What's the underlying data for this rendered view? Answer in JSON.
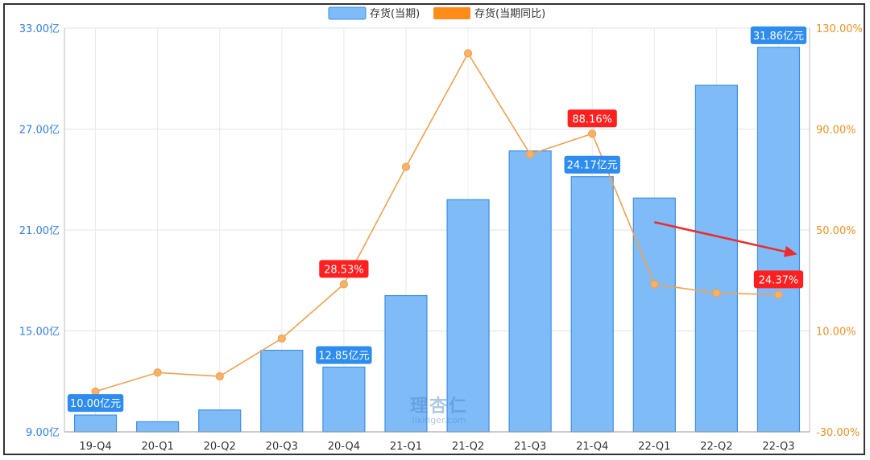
{
  "chart_data": {
    "type": "bar",
    "categories": [
      "19-Q4",
      "20-Q1",
      "20-Q2",
      "20-Q3",
      "20-Q4",
      "21-Q1",
      "21-Q2",
      "21-Q3",
      "21-Q4",
      "22-Q1",
      "22-Q2",
      "22-Q3"
    ],
    "series": [
      {
        "name": "存货(当期)",
        "type": "bar",
        "axis": "left",
        "unit": "亿元",
        "values": [
          10.0,
          9.6,
          10.3,
          13.85,
          12.85,
          17.1,
          22.8,
          25.7,
          24.17,
          22.9,
          29.6,
          31.86
        ]
      },
      {
        "name": "存货(当期同比)",
        "type": "line",
        "axis": "right",
        "unit": "%",
        "values": [
          -14.0,
          -6.5,
          -8.0,
          7.0,
          28.53,
          75.0,
          120.0,
          80.0,
          88.16,
          28.5,
          25.0,
          24.37
        ]
      }
    ],
    "y_left": {
      "ylim": [
        9.0,
        33.0
      ],
      "ticks": [
        "33.00亿",
        "27.00亿",
        "21.00亿",
        "15.00亿",
        "9.00亿"
      ]
    },
    "y_right": {
      "ylim": [
        -30.0,
        130.0
      ],
      "ticks": [
        "130.00%",
        "90.00%",
        "50.00%",
        "10.00%",
        "-30.00%"
      ]
    },
    "data_labels": {
      "bar": [
        {
          "index": 0,
          "text": "10.00亿元"
        },
        {
          "index": 4,
          "text": "12.85亿元"
        },
        {
          "index": 8,
          "text": "24.17亿元"
        },
        {
          "index": 11,
          "text": "31.86亿元"
        }
      ],
      "line": [
        {
          "index": 4,
          "text": "28.53%"
        },
        {
          "index": 8,
          "text": "88.16%"
        },
        {
          "index": 11,
          "text": "24.37%"
        }
      ]
    },
    "legend": {
      "position": "top-center"
    },
    "watermark": {
      "line1": "理杏仁",
      "line2": "lixinger.com"
    },
    "grid": true,
    "annotation": "red-arrow-trend-down"
  },
  "colors": {
    "bar_fill": "#7fbbf7",
    "bar_stroke": "#3d8fe8",
    "line": "#f5a04a",
    "bar_label_bg": "#2d8cf0",
    "line_label_bg": "#ff1f1f",
    "arrow": "#ee2b2b"
  }
}
